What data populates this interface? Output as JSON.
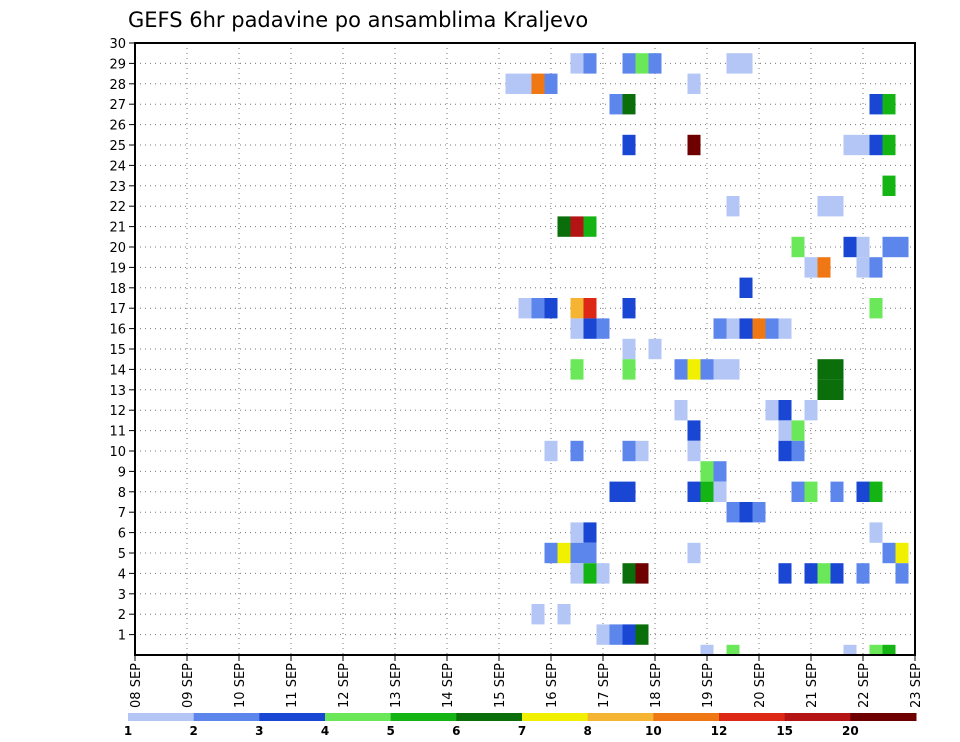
{
  "chart_data": {
    "type": "heatmap",
    "title": "GEFS 6hr padavine po ansamblima Kraljevo",
    "xlabel": "",
    "ylabel": "",
    "x_tick_labels": [
      "08 SEP",
      "09 SEP",
      "10 SEP",
      "11 SEP",
      "12 SEP",
      "13 SEP",
      "14 SEP",
      "15 SEP",
      "16 SEP",
      "17 SEP",
      "18 SEP",
      "19 SEP",
      "20 SEP",
      "21 SEP",
      "22 SEP",
      "23 SEP"
    ],
    "x_range_days": [
      8,
      23
    ],
    "y_tick_labels": [
      "1",
      "2",
      "3",
      "4",
      "5",
      "6",
      "7",
      "8",
      "9",
      "10",
      "11",
      "12",
      "13",
      "14",
      "15",
      "16",
      "17",
      "18",
      "19",
      "20",
      "21",
      "22",
      "23",
      "24",
      "25",
      "26",
      "27",
      "28",
      "29",
      "30"
    ],
    "y_range": [
      0,
      30
    ],
    "grid": true,
    "colorbar": {
      "labels": [
        "1",
        "2",
        "3",
        "4",
        "5",
        "6",
        "7",
        "8",
        "10",
        "12",
        "15",
        "20"
      ],
      "colors": [
        "#b4c6f5",
        "#5c86eb",
        "#1946d2",
        "#6be85a",
        "#14b414",
        "#0a6e0a",
        "#f0f000",
        "#f5b432",
        "#f07814",
        "#dc2814",
        "#b41414",
        "#6e0000"
      ]
    },
    "cells": [
      {
        "m": 29,
        "d": 16.5,
        "c": 1
      },
      {
        "m": 29,
        "d": 16.75,
        "c": 2
      },
      {
        "m": 29,
        "d": 17.5,
        "c": 2
      },
      {
        "m": 29,
        "d": 17.75,
        "c": 4
      },
      {
        "m": 29,
        "d": 18.0,
        "c": 2
      },
      {
        "m": 29,
        "d": 19.5,
        "c": 1
      },
      {
        "m": 29,
        "d": 19.75,
        "c": 1
      },
      {
        "m": 28,
        "d": 15.25,
        "c": 1
      },
      {
        "m": 28,
        "d": 15.5,
        "c": 1
      },
      {
        "m": 28,
        "d": 15.75,
        "c": 9
      },
      {
        "m": 28,
        "d": 16.0,
        "c": 2
      },
      {
        "m": 28,
        "d": 18.75,
        "c": 1
      },
      {
        "m": 27,
        "d": 17.25,
        "c": 2
      },
      {
        "m": 27,
        "d": 17.5,
        "c": 6
      },
      {
        "m": 27,
        "d": 22.25,
        "c": 3
      },
      {
        "m": 27,
        "d": 22.5,
        "c": 5
      },
      {
        "m": 25,
        "d": 17.5,
        "c": 3
      },
      {
        "m": 25,
        "d": 18.75,
        "c": 12
      },
      {
        "m": 25,
        "d": 21.75,
        "c": 1
      },
      {
        "m": 25,
        "d": 22.0,
        "c": 1
      },
      {
        "m": 25,
        "d": 22.25,
        "c": 3
      },
      {
        "m": 25,
        "d": 22.5,
        "c": 5
      },
      {
        "m": 23,
        "d": 22.5,
        "c": 5
      },
      {
        "m": 22,
        "d": 19.5,
        "c": 1
      },
      {
        "m": 22,
        "d": 21.25,
        "c": 1
      },
      {
        "m": 22,
        "d": 21.5,
        "c": 1
      },
      {
        "m": 21,
        "d": 16.25,
        "c": 6
      },
      {
        "m": 21,
        "d": 16.5,
        "c": 11
      },
      {
        "m": 21,
        "d": 16.75,
        "c": 5
      },
      {
        "m": 20,
        "d": 20.75,
        "c": 4
      },
      {
        "m": 20,
        "d": 21.75,
        "c": 3
      },
      {
        "m": 20,
        "d": 22.0,
        "c": 1
      },
      {
        "m": 20,
        "d": 22.5,
        "c": 2
      },
      {
        "m": 20,
        "d": 22.75,
        "c": 2
      },
      {
        "m": 19,
        "d": 21.0,
        "c": 1
      },
      {
        "m": 19,
        "d": 21.25,
        "c": 9
      },
      {
        "m": 19,
        "d": 22.0,
        "c": 1
      },
      {
        "m": 19,
        "d": 22.25,
        "c": 2
      },
      {
        "m": 18,
        "d": 19.75,
        "c": 3
      },
      {
        "m": 17,
        "d": 15.5,
        "c": 1
      },
      {
        "m": 17,
        "d": 15.75,
        "c": 2
      },
      {
        "m": 17,
        "d": 16.0,
        "c": 3
      },
      {
        "m": 17,
        "d": 16.5,
        "c": 8
      },
      {
        "m": 17,
        "d": 16.75,
        "c": 10
      },
      {
        "m": 17,
        "d": 17.5,
        "c": 3
      },
      {
        "m": 17,
        "d": 22.25,
        "c": 4
      },
      {
        "m": 16,
        "d": 16.5,
        "c": 1
      },
      {
        "m": 16,
        "d": 16.75,
        "c": 3
      },
      {
        "m": 16,
        "d": 17.0,
        "c": 2
      },
      {
        "m": 16,
        "d": 19.25,
        "c": 2
      },
      {
        "m": 16,
        "d": 19.5,
        "c": 1
      },
      {
        "m": 16,
        "d": 19.75,
        "c": 3
      },
      {
        "m": 16,
        "d": 20.0,
        "c": 9
      },
      {
        "m": 16,
        "d": 20.25,
        "c": 2
      },
      {
        "m": 16,
        "d": 20.5,
        "c": 1
      },
      {
        "m": 15,
        "d": 17.5,
        "c": 1
      },
      {
        "m": 15,
        "d": 18.0,
        "c": 1
      },
      {
        "m": 14,
        "d": 16.5,
        "c": 4
      },
      {
        "m": 14,
        "d": 17.5,
        "c": 4
      },
      {
        "m": 14,
        "d": 18.5,
        "c": 2
      },
      {
        "m": 14,
        "d": 18.75,
        "c": 7
      },
      {
        "m": 14,
        "d": 19.0,
        "c": 2
      },
      {
        "m": 14,
        "d": 19.25,
        "c": 1
      },
      {
        "m": 14,
        "d": 19.5,
        "c": 1
      },
      {
        "m": 14,
        "d": 21.25,
        "c": 6
      },
      {
        "m": 14,
        "d": 21.5,
        "c": 6
      },
      {
        "m": 13,
        "d": 21.25,
        "c": 6
      },
      {
        "m": 13,
        "d": 21.5,
        "c": 6
      },
      {
        "m": 12,
        "d": 18.5,
        "c": 1
      },
      {
        "m": 12,
        "d": 20.25,
        "c": 1
      },
      {
        "m": 12,
        "d": 20.5,
        "c": 3
      },
      {
        "m": 12,
        "d": 21.0,
        "c": 1
      },
      {
        "m": 11,
        "d": 18.75,
        "c": 3
      },
      {
        "m": 11,
        "d": 20.5,
        "c": 1
      },
      {
        "m": 11,
        "d": 20.75,
        "c": 4
      },
      {
        "m": 10,
        "d": 16.0,
        "c": 1
      },
      {
        "m": 10,
        "d": 16.5,
        "c": 2
      },
      {
        "m": 10,
        "d": 17.5,
        "c": 2
      },
      {
        "m": 10,
        "d": 17.75,
        "c": 1
      },
      {
        "m": 10,
        "d": 18.75,
        "c": 1
      },
      {
        "m": 10,
        "d": 20.5,
        "c": 3
      },
      {
        "m": 10,
        "d": 20.75,
        "c": 2
      },
      {
        "m": 9,
        "d": 19.0,
        "c": 4
      },
      {
        "m": 9,
        "d": 19.25,
        "c": 2
      },
      {
        "m": 8,
        "d": 17.25,
        "c": 3
      },
      {
        "m": 8,
        "d": 17.5,
        "c": 3
      },
      {
        "m": 8,
        "d": 18.75,
        "c": 3
      },
      {
        "m": 8,
        "d": 19.0,
        "c": 5
      },
      {
        "m": 8,
        "d": 19.25,
        "c": 1
      },
      {
        "m": 8,
        "d": 20.75,
        "c": 2
      },
      {
        "m": 8,
        "d": 21.0,
        "c": 4
      },
      {
        "m": 8,
        "d": 21.5,
        "c": 2
      },
      {
        "m": 8,
        "d": 22.0,
        "c": 3
      },
      {
        "m": 8,
        "d": 22.25,
        "c": 5
      },
      {
        "m": 7,
        "d": 19.5,
        "c": 2
      },
      {
        "m": 7,
        "d": 19.75,
        "c": 3
      },
      {
        "m": 7,
        "d": 20.0,
        "c": 2
      },
      {
        "m": 6,
        "d": 16.5,
        "c": 1
      },
      {
        "m": 6,
        "d": 16.75,
        "c": 3
      },
      {
        "m": 6,
        "d": 22.25,
        "c": 1
      },
      {
        "m": 5,
        "d": 16.0,
        "c": 2
      },
      {
        "m": 5,
        "d": 16.25,
        "c": 7
      },
      {
        "m": 5,
        "d": 16.5,
        "c": 2
      },
      {
        "m": 5,
        "d": 16.75,
        "c": 2
      },
      {
        "m": 5,
        "d": 18.75,
        "c": 1
      },
      {
        "m": 5,
        "d": 22.5,
        "c": 2
      },
      {
        "m": 5,
        "d": 22.75,
        "c": 7
      },
      {
        "m": 4,
        "d": 16.5,
        "c": 1
      },
      {
        "m": 4,
        "d": 16.75,
        "c": 5
      },
      {
        "m": 4,
        "d": 17.0,
        "c": 1
      },
      {
        "m": 4,
        "d": 17.5,
        "c": 6
      },
      {
        "m": 4,
        "d": 17.75,
        "c": 12
      },
      {
        "m": 4,
        "d": 20.5,
        "c": 3
      },
      {
        "m": 4,
        "d": 21.0,
        "c": 3
      },
      {
        "m": 4,
        "d": 21.25,
        "c": 4
      },
      {
        "m": 4,
        "d": 21.5,
        "c": 3
      },
      {
        "m": 4,
        "d": 22.0,
        "c": 2
      },
      {
        "m": 4,
        "d": 22.75,
        "c": 2
      },
      {
        "m": 2,
        "d": 15.75,
        "c": 1
      },
      {
        "m": 2,
        "d": 16.25,
        "c": 1
      },
      {
        "m": 1,
        "d": 17.0,
        "c": 1
      },
      {
        "m": 1,
        "d": 17.25,
        "c": 2
      },
      {
        "m": 1,
        "d": 17.5,
        "c": 3
      },
      {
        "m": 1,
        "d": 17.75,
        "c": 6
      },
      {
        "m": 0,
        "d": 19.0,
        "c": 1
      },
      {
        "m": 0,
        "d": 19.5,
        "c": 4
      },
      {
        "m": 0,
        "d": 21.75,
        "c": 1
      },
      {
        "m": 0,
        "d": 22.25,
        "c": 4
      },
      {
        "m": 0,
        "d": 22.5,
        "c": 5
      }
    ]
  }
}
